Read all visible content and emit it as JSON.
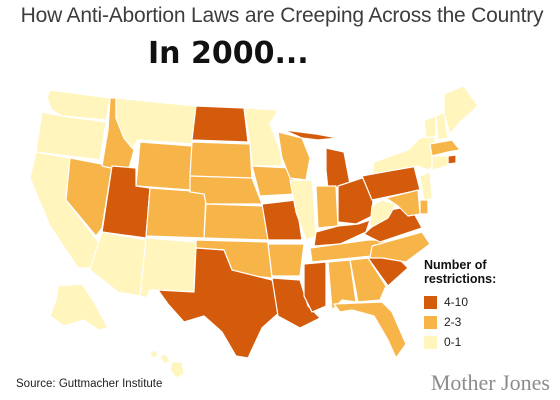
{
  "header": {
    "title": "How Anti-Abortion Laws are Creeping Across the Country",
    "subtitle": "In 2000..."
  },
  "legend": {
    "title": "Number of restrictions:",
    "items": [
      {
        "label": "4-10",
        "color": "#d45a0c"
      },
      {
        "label": "2-3",
        "color": "#f7b549"
      },
      {
        "label": "0-1",
        "color": "#fff5bd"
      }
    ]
  },
  "footer": {
    "source": "Source: Guttmacher Institute",
    "brand": "Mother Jones"
  },
  "map_data": {
    "type": "choropleth",
    "categories": {
      "high": "4-10",
      "mid": "2-3",
      "low": "0-1"
    },
    "border_color": "#ffffff",
    "states": {
      "WA": "low",
      "OR": "low",
      "CA": "low",
      "NV": "mid",
      "ID": "mid",
      "MT": "low",
      "WY": "mid",
      "UT": "high",
      "AZ": "low",
      "CO": "mid",
      "NM": "low",
      "ND": "high",
      "SD": "mid",
      "NE": "mid",
      "KS": "mid",
      "OK": "mid",
      "TX": "high",
      "MN": "low",
      "IA": "mid",
      "MO": "high",
      "AR": "mid",
      "LA": "high",
      "WI": "mid",
      "IL": "low",
      "MI": "high",
      "IN": "mid",
      "OH": "high",
      "KY": "high",
      "TN": "mid",
      "MS": "high",
      "AL": "mid",
      "GA": "mid",
      "FL": "mid",
      "SC": "high",
      "NC": "mid",
      "VA": "high",
      "WV": "low",
      "PA": "high",
      "NY": "low",
      "VT": "low",
      "NH": "low",
      "ME": "low",
      "MA": "mid",
      "RI": "high",
      "CT": "low",
      "NJ": "low",
      "DE": "mid",
      "MD": "mid",
      "AK": "low",
      "HI": "low"
    }
  }
}
